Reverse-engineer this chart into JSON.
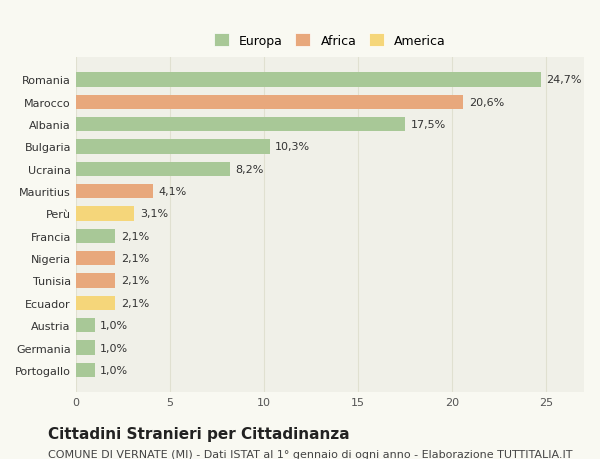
{
  "categories": [
    "Portogallo",
    "Germania",
    "Austria",
    "Ecuador",
    "Tunisia",
    "Nigeria",
    "Francia",
    "Perù",
    "Mauritius",
    "Ucraina",
    "Bulgaria",
    "Albania",
    "Marocco",
    "Romania"
  ],
  "values": [
    1.0,
    1.0,
    1.0,
    2.1,
    2.1,
    2.1,
    2.1,
    3.1,
    4.1,
    8.2,
    10.3,
    17.5,
    20.6,
    24.7
  ],
  "labels": [
    "1,0%",
    "1,0%",
    "1,0%",
    "2,1%",
    "2,1%",
    "2,1%",
    "2,1%",
    "3,1%",
    "4,1%",
    "8,2%",
    "10,3%",
    "17,5%",
    "20,6%",
    "24,7%"
  ],
  "continents": [
    "Europa",
    "Europa",
    "Europa",
    "America",
    "Africa",
    "Africa",
    "Europa",
    "America",
    "Africa",
    "Europa",
    "Europa",
    "Europa",
    "Africa",
    "Europa"
  ],
  "colors": {
    "Europa": "#a8c897",
    "Africa": "#e8a87c",
    "America": "#f5d67a"
  },
  "legend_labels": [
    "Europa",
    "Africa",
    "America"
  ],
  "legend_colors": [
    "#a8c897",
    "#e8a87c",
    "#f5d67a"
  ],
  "title": "Cittadini Stranieri per Cittadinanza",
  "subtitle": "COMUNE DI VERNATE (MI) - Dati ISTAT al 1° gennaio di ogni anno - Elaborazione TUTTITALIA.IT",
  "xlim": [
    0,
    27
  ],
  "xticks": [
    0,
    5,
    10,
    15,
    20,
    25
  ],
  "background_color": "#f9f9f2",
  "bar_background": "#f0f0e8",
  "grid_color": "#e0e0d0",
  "title_fontsize": 11,
  "subtitle_fontsize": 8,
  "label_fontsize": 8,
  "tick_fontsize": 8
}
